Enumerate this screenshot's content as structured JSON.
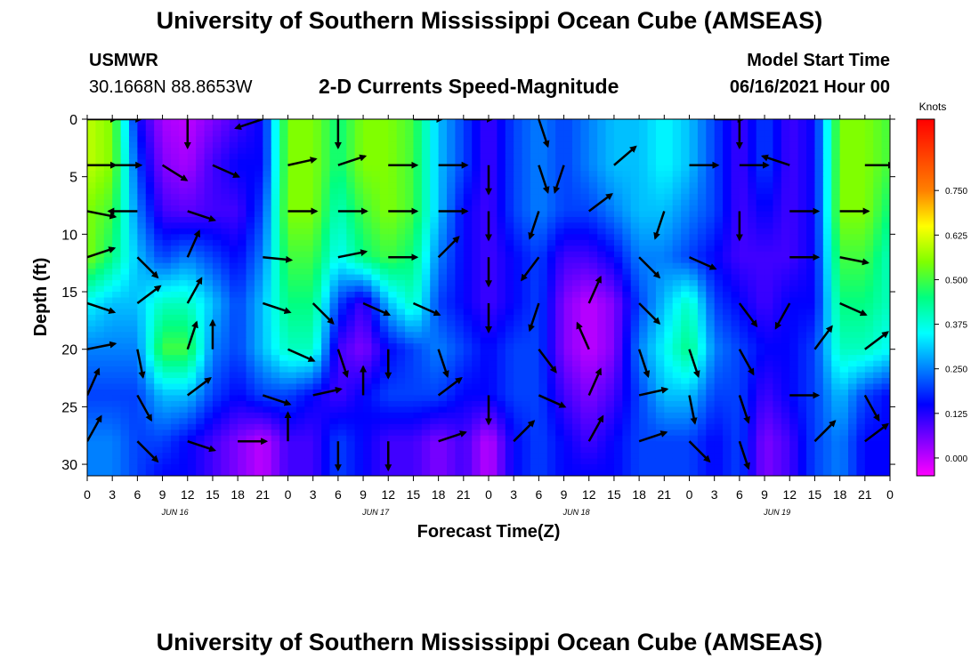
{
  "title_top": "University of Southern Mississippi Ocean Cube (AMSEAS)",
  "title_bottom": "University of Southern Mississippi Ocean Cube (AMSEAS)",
  "station": "USMWR",
  "coords": "30.1668N  88.8653W",
  "subtitle": "2-D Currents Speed-Magnitude",
  "model_start_label": "Model Start Time",
  "model_start_value": "06/16/2021 Hour 00",
  "chart_data": {
    "type": "heatmap",
    "title": "2-D Currents Speed-Magnitude",
    "xlabel": "Forecast Time(Z)",
    "ylabel": "Depth (ft)",
    "xlim": [
      0,
      96
    ],
    "ylim": [
      31,
      0
    ],
    "x_tick_labels": [
      "0",
      "3",
      "6",
      "9",
      "12",
      "15",
      "18",
      "21",
      "0",
      "3",
      "6",
      "9",
      "12",
      "15",
      "18",
      "21",
      "0",
      "3",
      "6",
      "9",
      "12",
      "15",
      "18",
      "21",
      "0",
      "3",
      "6",
      "9",
      "12",
      "15",
      "18",
      "21",
      "0"
    ],
    "y_ticks": [
      0,
      5,
      10,
      15,
      20,
      25,
      30
    ],
    "day_labels": [
      "JUN 16",
      "JUN 17",
      "JUN 18",
      "JUN 19"
    ],
    "colorbar": {
      "unit": "Knots",
      "range": [
        -0.05,
        0.95
      ],
      "tick_values": [
        0.75,
        0.625,
        0.5,
        0.375,
        0.25,
        0.125,
        0.0
      ],
      "tick_labels": [
        "0.750",
        "0.625",
        "0.500",
        "0.375",
        "0.250",
        "0.125",
        "0.000"
      ],
      "colors": [
        "#ff00ff",
        "#8000ff",
        "#0000ff",
        "#0080ff",
        "#00ffff",
        "#00ff80",
        "#80ff00",
        "#ffff00",
        "#ff8000",
        "#ff4000",
        "#ff0000"
      ]
    },
    "depths": [
      0,
      4,
      8,
      12,
      16,
      20,
      24,
      28,
      31
    ],
    "times": [
      0,
      3,
      6,
      9,
      12,
      15,
      18,
      21,
      24,
      27,
      30,
      33,
      36,
      39,
      42,
      45,
      48,
      51,
      54,
      57,
      60,
      63,
      66,
      69,
      72,
      75,
      78,
      81,
      84,
      87,
      90,
      93,
      96
    ],
    "speed": [
      [
        0.6,
        0.55,
        0.15,
        0.02,
        0.0,
        0.05,
        0.1,
        0.15,
        0.55,
        0.55,
        0.45,
        0.55,
        0.55,
        0.5,
        0.3,
        0.2,
        0.1,
        0.2,
        0.25,
        0.2,
        0.25,
        0.3,
        0.3,
        0.35,
        0.3,
        0.2,
        0.1,
        0.2,
        0.1,
        0.15,
        0.55,
        0.55,
        0.5
      ],
      [
        0.6,
        0.55,
        0.2,
        0.05,
        0.02,
        0.1,
        0.15,
        0.15,
        0.55,
        0.55,
        0.45,
        0.55,
        0.55,
        0.5,
        0.3,
        0.2,
        0.1,
        0.2,
        0.25,
        0.2,
        0.25,
        0.3,
        0.3,
        0.35,
        0.3,
        0.2,
        0.1,
        0.2,
        0.1,
        0.15,
        0.55,
        0.55,
        0.5
      ],
      [
        0.55,
        0.5,
        0.25,
        0.1,
        0.08,
        0.1,
        0.1,
        0.2,
        0.55,
        0.55,
        0.4,
        0.5,
        0.55,
        0.5,
        0.3,
        0.15,
        0.1,
        0.2,
        0.25,
        0.2,
        0.2,
        0.25,
        0.3,
        0.3,
        0.25,
        0.2,
        0.1,
        0.15,
        0.1,
        0.15,
        0.55,
        0.55,
        0.45
      ],
      [
        0.55,
        0.45,
        0.3,
        0.2,
        0.25,
        0.2,
        0.15,
        0.25,
        0.5,
        0.5,
        0.35,
        0.45,
        0.5,
        0.45,
        0.25,
        0.15,
        0.1,
        0.15,
        0.2,
        0.1,
        0.1,
        0.15,
        0.25,
        0.25,
        0.2,
        0.15,
        0.1,
        0.1,
        0.1,
        0.15,
        0.5,
        0.5,
        0.4
      ],
      [
        0.35,
        0.3,
        0.3,
        0.4,
        0.4,
        0.3,
        0.2,
        0.3,
        0.45,
        0.45,
        0.2,
        0.1,
        0.3,
        0.4,
        0.2,
        0.15,
        0.1,
        0.15,
        0.2,
        0.05,
        0.0,
        0.05,
        0.2,
        0.3,
        0.4,
        0.2,
        0.15,
        0.1,
        0.15,
        0.15,
        0.45,
        0.45,
        0.4
      ],
      [
        0.25,
        0.25,
        0.25,
        0.5,
        0.5,
        0.25,
        0.2,
        0.3,
        0.4,
        0.4,
        0.1,
        0.05,
        0.15,
        0.2,
        0.25,
        0.2,
        0.15,
        0.2,
        0.2,
        0.05,
        0.0,
        0.05,
        0.25,
        0.35,
        0.45,
        0.25,
        0.2,
        0.15,
        0.15,
        0.2,
        0.4,
        0.4,
        0.35
      ],
      [
        0.2,
        0.2,
        0.2,
        0.3,
        0.3,
        0.2,
        0.15,
        0.2,
        0.2,
        0.15,
        0.1,
        0.15,
        0.2,
        0.2,
        0.2,
        0.15,
        0.15,
        0.2,
        0.2,
        0.1,
        0.05,
        0.1,
        0.2,
        0.3,
        0.3,
        0.2,
        0.2,
        0.1,
        0.15,
        0.2,
        0.3,
        0.2,
        0.15
      ],
      [
        0.25,
        0.25,
        0.2,
        0.2,
        0.15,
        0.1,
        0.05,
        0.0,
        0.1,
        0.1,
        0.2,
        0.15,
        0.1,
        0.1,
        0.05,
        0.1,
        0.0,
        0.15,
        0.2,
        0.15,
        0.1,
        0.15,
        0.2,
        0.2,
        0.2,
        0.15,
        0.2,
        0.05,
        0.1,
        0.2,
        0.25,
        0.15,
        0.15
      ],
      [
        0.25,
        0.25,
        0.2,
        0.15,
        0.15,
        0.1,
        0.05,
        0.0,
        0.1,
        0.1,
        0.2,
        0.15,
        0.1,
        0.1,
        0.05,
        0.1,
        0.0,
        0.15,
        0.2,
        0.15,
        0.15,
        0.15,
        0.2,
        0.2,
        0.2,
        0.15,
        0.2,
        0.05,
        0.1,
        0.2,
        0.25,
        0.15,
        0.15
      ]
    ],
    "arrows": [
      {
        "t": 0,
        "d": 0,
        "u": 1.0,
        "v": 0.0
      },
      {
        "t": 3,
        "d": 0,
        "u": 1.0,
        "v": 0.0
      },
      {
        "t": 12,
        "d": 0,
        "u": 0.0,
        "v": -1.0
      },
      {
        "t": 21,
        "d": 0,
        "u": -0.9,
        "v": -0.3
      },
      {
        "t": 30,
        "d": 0,
        "u": 0.0,
        "v": -1.0
      },
      {
        "t": 39,
        "d": 0,
        "u": 1.0,
        "v": 0.0
      },
      {
        "t": 45,
        "d": 0,
        "u": 1.0,
        "v": 0.0
      },
      {
        "t": 54,
        "d": 0,
        "u": 0.3,
        "v": -0.9
      },
      {
        "t": 66,
        "d": 0,
        "u": 0.3,
        "v": 0.9
      },
      {
        "t": 75,
        "d": 0,
        "u": 1.0,
        "v": 0.0
      },
      {
        "t": 78,
        "d": 0,
        "u": 0.0,
        "v": -1.0
      },
      {
        "t": 96,
        "d": 0,
        "u": 0.9,
        "v": 0.2
      },
      {
        "t": 0,
        "d": 4,
        "u": 1.0,
        "v": 0.0
      },
      {
        "t": 3,
        "d": 4,
        "u": 1.0,
        "v": 0.0
      },
      {
        "t": 9,
        "d": 4,
        "u": 0.8,
        "v": -0.5
      },
      {
        "t": 15,
        "d": 4,
        "u": 0.9,
        "v": -0.4
      },
      {
        "t": 24,
        "d": 4,
        "u": 0.9,
        "v": 0.2
      },
      {
        "t": 30,
        "d": 4,
        "u": 0.9,
        "v": 0.3
      },
      {
        "t": 36,
        "d": 4,
        "u": 1.0,
        "v": 0.0
      },
      {
        "t": 42,
        "d": 4,
        "u": 1.0,
        "v": 0.0
      },
      {
        "t": 48,
        "d": 4,
        "u": 0.0,
        "v": -1.0
      },
      {
        "t": 54,
        "d": 4,
        "u": 0.3,
        "v": -0.9
      },
      {
        "t": 57,
        "d": 4,
        "u": -0.3,
        "v": -0.9
      },
      {
        "t": 63,
        "d": 4,
        "u": 0.7,
        "v": 0.6
      },
      {
        "t": 72,
        "d": 4,
        "u": 1.0,
        "v": 0.0
      },
      {
        "t": 78,
        "d": 4,
        "u": 1.0,
        "v": 0.0
      },
      {
        "t": 84,
        "d": 4,
        "u": -0.9,
        "v": 0.3
      },
      {
        "t": 93,
        "d": 4,
        "u": 1.0,
        "v": 0.0
      },
      {
        "t": 0,
        "d": 8,
        "u": 1.0,
        "v": -0.2
      },
      {
        "t": 6,
        "d": 8,
        "u": -1.0,
        "v": 0.0
      },
      {
        "t": 12,
        "d": 8,
        "u": 0.9,
        "v": -0.3
      },
      {
        "t": 24,
        "d": 8,
        "u": 1.0,
        "v": 0.0
      },
      {
        "t": 30,
        "d": 8,
        "u": 1.0,
        "v": 0.0
      },
      {
        "t": 36,
        "d": 8,
        "u": 1.0,
        "v": 0.0
      },
      {
        "t": 42,
        "d": 8,
        "u": 1.0,
        "v": 0.0
      },
      {
        "t": 48,
        "d": 8,
        "u": 0.0,
        "v": -1.0
      },
      {
        "t": 54,
        "d": 8,
        "u": -0.3,
        "v": -0.9
      },
      {
        "t": 60,
        "d": 8,
        "u": 0.8,
        "v": 0.6
      },
      {
        "t": 69,
        "d": 8,
        "u": -0.3,
        "v": -0.9
      },
      {
        "t": 78,
        "d": 8,
        "u": 0.0,
        "v": -1.0
      },
      {
        "t": 84,
        "d": 8,
        "u": 1.0,
        "v": 0.0
      },
      {
        "t": 90,
        "d": 8,
        "u": 1.0,
        "v": 0.0
      },
      {
        "t": 0,
        "d": 12,
        "u": 0.9,
        "v": 0.3
      },
      {
        "t": 6,
        "d": 12,
        "u": 0.7,
        "v": -0.7
      },
      {
        "t": 12,
        "d": 12,
        "u": 0.4,
        "v": 0.9
      },
      {
        "t": 21,
        "d": 12,
        "u": 1.0,
        "v": -0.1
      },
      {
        "t": 30,
        "d": 12,
        "u": 1.0,
        "v": 0.2
      },
      {
        "t": 36,
        "d": 12,
        "u": 1.0,
        "v": 0.0
      },
      {
        "t": 42,
        "d": 12,
        "u": 0.7,
        "v": 0.7
      },
      {
        "t": 48,
        "d": 12,
        "u": 0.0,
        "v": -1.0
      },
      {
        "t": 54,
        "d": 12,
        "u": -0.6,
        "v": -0.8
      },
      {
        "t": 66,
        "d": 12,
        "u": 0.7,
        "v": -0.7
      },
      {
        "t": 72,
        "d": 12,
        "u": 0.9,
        "v": -0.4
      },
      {
        "t": 84,
        "d": 12,
        "u": 1.0,
        "v": 0.0
      },
      {
        "t": 90,
        "d": 12,
        "u": 1.0,
        "v": -0.2
      },
      {
        "t": 0,
        "d": 16,
        "u": 0.9,
        "v": -0.3
      },
      {
        "t": 6,
        "d": 16,
        "u": 0.8,
        "v": 0.6
      },
      {
        "t": 12,
        "d": 16,
        "u": 0.5,
        "v": 0.9
      },
      {
        "t": 21,
        "d": 16,
        "u": 0.9,
        "v": -0.3
      },
      {
        "t": 27,
        "d": 16,
        "u": 0.7,
        "v": -0.7
      },
      {
        "t": 33,
        "d": 16,
        "u": 0.9,
        "v": -0.4
      },
      {
        "t": 39,
        "d": 16,
        "u": 0.9,
        "v": -0.4
      },
      {
        "t": 48,
        "d": 16,
        "u": 0.0,
        "v": -1.0
      },
      {
        "t": 54,
        "d": 16,
        "u": -0.3,
        "v": -0.9
      },
      {
        "t": 60,
        "d": 16,
        "u": 0.4,
        "v": 0.9
      },
      {
        "t": 66,
        "d": 16,
        "u": 0.7,
        "v": -0.7
      },
      {
        "t": 78,
        "d": 16,
        "u": 0.6,
        "v": -0.8
      },
      {
        "t": 84,
        "d": 16,
        "u": -0.5,
        "v": -0.9
      },
      {
        "t": 90,
        "d": 16,
        "u": 0.9,
        "v": -0.4
      },
      {
        "t": 0,
        "d": 20,
        "u": 1.0,
        "v": 0.2
      },
      {
        "t": 6,
        "d": 20,
        "u": 0.2,
        "v": -1.0
      },
      {
        "t": 12,
        "d": 20,
        "u": 0.3,
        "v": 0.9
      },
      {
        "t": 15,
        "d": 20,
        "u": 0.0,
        "v": 1.0
      },
      {
        "t": 24,
        "d": 20,
        "u": 0.9,
        "v": -0.4
      },
      {
        "t": 30,
        "d": 20,
        "u": 0.3,
        "v": -0.9
      },
      {
        "t": 36,
        "d": 20,
        "u": 0.0,
        "v": -1.0
      },
      {
        "t": 42,
        "d": 20,
        "u": 0.3,
        "v": -0.9
      },
      {
        "t": 54,
        "d": 20,
        "u": 0.6,
        "v": -0.8
      },
      {
        "t": 60,
        "d": 20,
        "u": -0.4,
        "v": 0.9
      },
      {
        "t": 66,
        "d": 20,
        "u": 0.3,
        "v": -0.9
      },
      {
        "t": 72,
        "d": 20,
        "u": 0.3,
        "v": -0.9
      },
      {
        "t": 78,
        "d": 20,
        "u": 0.5,
        "v": -0.9
      },
      {
        "t": 87,
        "d": 20,
        "u": 0.6,
        "v": 0.8
      },
      {
        "t": 93,
        "d": 20,
        "u": 0.8,
        "v": 0.6
      },
      {
        "t": 0,
        "d": 24,
        "u": 0.4,
        "v": 0.9
      },
      {
        "t": 6,
        "d": 24,
        "u": 0.5,
        "v": -0.9
      },
      {
        "t": 12,
        "d": 24,
        "u": 0.8,
        "v": 0.6
      },
      {
        "t": 21,
        "d": 24,
        "u": 0.9,
        "v": -0.3
      },
      {
        "t": 27,
        "d": 24,
        "u": 0.9,
        "v": 0.2
      },
      {
        "t": 33,
        "d": 24,
        "u": 0.0,
        "v": 1.0
      },
      {
        "t": 42,
        "d": 24,
        "u": 0.8,
        "v": 0.6
      },
      {
        "t": 48,
        "d": 24,
        "u": 0.0,
        "v": -1.0
      },
      {
        "t": 54,
        "d": 24,
        "u": 0.9,
        "v": -0.4
      },
      {
        "t": 60,
        "d": 24,
        "u": 0.4,
        "v": 0.9
      },
      {
        "t": 66,
        "d": 24,
        "u": 0.9,
        "v": 0.2
      },
      {
        "t": 72,
        "d": 24,
        "u": 0.2,
        "v": -1.0
      },
      {
        "t": 78,
        "d": 24,
        "u": 0.3,
        "v": -0.9
      },
      {
        "t": 84,
        "d": 24,
        "u": 1.0,
        "v": 0.0
      },
      {
        "t": 93,
        "d": 24,
        "u": 0.5,
        "v": -0.9
      },
      {
        "t": 0,
        "d": 28,
        "u": 0.5,
        "v": 0.9
      },
      {
        "t": 6,
        "d": 28,
        "u": 0.7,
        "v": -0.7
      },
      {
        "t": 12,
        "d": 28,
        "u": 0.9,
        "v": -0.3
      },
      {
        "t": 18,
        "d": 28,
        "u": 1.0,
        "v": 0.0
      },
      {
        "t": 24,
        "d": 28,
        "u": 0.0,
        "v": 1.0
      },
      {
        "t": 30,
        "d": 28,
        "u": 0.0,
        "v": -1.0
      },
      {
        "t": 36,
        "d": 28,
        "u": 0.0,
        "v": -1.0
      },
      {
        "t": 42,
        "d": 28,
        "u": 0.9,
        "v": 0.3
      },
      {
        "t": 51,
        "d": 28,
        "u": 0.7,
        "v": 0.7
      },
      {
        "t": 60,
        "d": 28,
        "u": 0.5,
        "v": 0.9
      },
      {
        "t": 66,
        "d": 28,
        "u": 0.9,
        "v": 0.3
      },
      {
        "t": 72,
        "d": 28,
        "u": 0.7,
        "v": -0.7
      },
      {
        "t": 78,
        "d": 28,
        "u": 0.3,
        "v": -0.9
      },
      {
        "t": 87,
        "d": 28,
        "u": 0.7,
        "v": 0.7
      },
      {
        "t": 93,
        "d": 28,
        "u": 0.8,
        "v": 0.6
      }
    ]
  }
}
